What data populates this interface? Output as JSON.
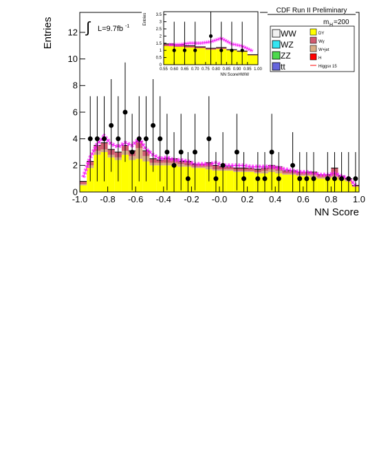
{
  "header": {
    "title": "CDF Run II Preliminary",
    "mass_label": "m",
    "mass_sub": "H",
    "mass_value": "=200"
  },
  "lumi": {
    "label": "L=9.7fb",
    "exp": "-1"
  },
  "legend": {
    "left": [
      {
        "label": "WW",
        "color": "#f2f2f2"
      },
      {
        "label": "WZ",
        "color": "#33e6f2"
      },
      {
        "label": "ZZ",
        "color": "#4dd94d"
      },
      {
        "label": "tt",
        "color": "#6666dd"
      }
    ],
    "right": [
      {
        "label": "DY",
        "color": "#ffff00"
      },
      {
        "label": "Wγ",
        "color": "#d05c70"
      },
      {
        "label": "W+jet",
        "color": "#d9ad85"
      },
      {
        "label": "H",
        "color": "#ff0000"
      },
      {
        "label": "Higgsx 15",
        "color": "#ff0000"
      }
    ]
  },
  "chart_data": [
    {
      "type": "bar",
      "title": "",
      "xlabel": "NN Score",
      "ylabel": "Entries",
      "xlim": [
        -1.0,
        1.0
      ],
      "ylim": [
        0,
        13.5
      ],
      "xticks": [
        "-1.0",
        "-0.8",
        "-0.6",
        "-0.4",
        "-0.2",
        "-0.0",
        "0.2",
        "0.4",
        "0.6",
        "0.8",
        "1.0"
      ],
      "yticks": [
        "0",
        "2",
        "4",
        "6",
        "8",
        "10",
        "12"
      ],
      "bin_edges_start": -1.0,
      "bin_width": 0.05,
      "series": [
        {
          "name": "DY",
          "values": [
            0.5,
            1.8,
            2.8,
            3.0,
            2.6,
            2.4,
            2.8,
            2.4,
            2.5,
            2.3,
            2.0,
            2.0,
            2.0,
            2.0,
            1.9,
            1.9,
            1.8,
            1.8,
            1.7,
            1.6,
            1.6,
            1.6,
            1.5,
            1.5,
            1.5,
            1.4,
            1.4,
            1.5,
            1.4,
            1.3,
            1.3,
            1.2,
            1.2,
            1.1,
            1.0,
            1.0,
            1.1,
            0.9,
            0.8,
            0.4
          ]
        },
        {
          "name": "Wγ",
          "values": [
            0.2,
            0.3,
            0.4,
            0.5,
            0.4,
            0.4,
            0.4,
            0.4,
            0.5,
            0.4,
            0.3,
            0.2,
            0.3,
            0.3,
            0.2,
            0.3,
            0.2,
            0.2,
            0.3,
            0.3,
            0.2,
            0.2,
            0.2,
            0.2,
            0.2,
            0.2,
            0.2,
            0.3,
            0.3,
            0.2,
            0.2,
            0.2,
            0.2,
            0.2,
            0.2,
            0.2,
            0.6,
            0.2,
            0.1,
            0.1
          ]
        },
        {
          "name": "W+jet",
          "values": [
            0.1,
            0.2,
            0.3,
            0.2,
            0.2,
            0.2,
            0.3,
            0.3,
            0.8,
            0.4,
            0.2,
            0.2,
            0.2,
            0.2,
            0.2,
            0.1,
            0.1,
            0.1,
            0.2,
            0.1,
            0.1,
            0.1,
            0.1,
            0.1,
            0.1,
            0.1,
            0.2,
            0.2,
            0.2,
            0.1,
            0.1,
            0.1,
            0.1,
            0.2,
            0.1,
            0.1,
            0.1,
            0.1,
            0.1,
            0.0
          ]
        },
        {
          "name": "Higgsx 15",
          "values": [
            1.1,
            2.6,
            3.6,
            4.2,
            3.6,
            3.4,
            3.7,
            3.5,
            4.0,
            3.2,
            2.8,
            2.5,
            2.6,
            2.4,
            2.4,
            2.3,
            2.1,
            2.1,
            2.1,
            2.2,
            2.0,
            2.0,
            2.0,
            2.0,
            1.9,
            1.9,
            1.9,
            1.9,
            1.8,
            1.7,
            1.6,
            1.5,
            1.5,
            1.4,
            1.3,
            1.3,
            1.4,
            1.2,
            1.0,
            0.5
          ]
        },
        {
          "name": "Data",
          "points": [
            [
              -0.925,
              4
            ],
            [
              -0.875,
              4
            ],
            [
              -0.825,
              4
            ],
            [
              -0.775,
              5
            ],
            [
              -0.725,
              4
            ],
            [
              -0.675,
              6
            ],
            [
              -0.625,
              3
            ],
            [
              -0.575,
              4
            ],
            [
              -0.525,
              4
            ],
            [
              -0.475,
              5
            ],
            [
              -0.425,
              4
            ],
            [
              -0.375,
              3
            ],
            [
              -0.325,
              2
            ],
            [
              -0.275,
              3
            ],
            [
              -0.225,
              1
            ],
            [
              -0.175,
              3
            ],
            [
              -0.075,
              4
            ],
            [
              -0.025,
              1
            ],
            [
              0.025,
              2
            ],
            [
              0.125,
              3
            ],
            [
              0.175,
              1
            ],
            [
              0.275,
              1
            ],
            [
              0.325,
              1
            ],
            [
              0.375,
              3
            ],
            [
              0.425,
              1
            ],
            [
              0.525,
              2
            ],
            [
              0.575,
              1
            ],
            [
              0.625,
              1
            ],
            [
              0.675,
              1
            ],
            [
              0.775,
              1
            ],
            [
              0.825,
              1
            ],
            [
              0.875,
              1
            ],
            [
              0.925,
              1
            ],
            [
              0.975,
              1
            ]
          ]
        }
      ]
    },
    {
      "type": "bar",
      "title": "",
      "xlabel": "NN ScoreHWW",
      "ylabel": "Entries",
      "xlim": [
        0.55,
        1.0
      ],
      "ylim": [
        0,
        3.7
      ],
      "xticks": [
        "0.55",
        "0.60",
        "0.65",
        "0.70",
        "0.75",
        "0.80",
        "0.85",
        "0.90",
        "0.95",
        "1.00"
      ],
      "yticks": [
        "0",
        "0.5",
        "1",
        "1.5",
        "2",
        "2.5",
        "3",
        "3.5"
      ],
      "bin_edges_start": 0.55,
      "bin_width": 0.05,
      "series": [
        {
          "name": "DY",
          "values": [
            1.3,
            1.25,
            1.2,
            1.15,
            1.05,
            1.1,
            1.0,
            0.9,
            0.65
          ]
        },
        {
          "name": "Wγ",
          "values": [
            0.15,
            0.15,
            0.12,
            0.1,
            0.1,
            0.1,
            0.05,
            0.05,
            0.05
          ]
        },
        {
          "name": "Higgsx 15",
          "values": [
            1.4,
            1.4,
            1.5,
            1.5,
            1.6,
            1.85,
            1.45,
            1.3,
            0.95
          ]
        },
        {
          "name": "Data",
          "points": [
            [
              0.6,
              1
            ],
            [
              0.65,
              1
            ],
            [
              0.7,
              1
            ],
            [
              0.775,
              2
            ],
            [
              0.825,
              1
            ],
            [
              0.875,
              1
            ],
            [
              0.925,
              1
            ]
          ]
        }
      ]
    }
  ]
}
